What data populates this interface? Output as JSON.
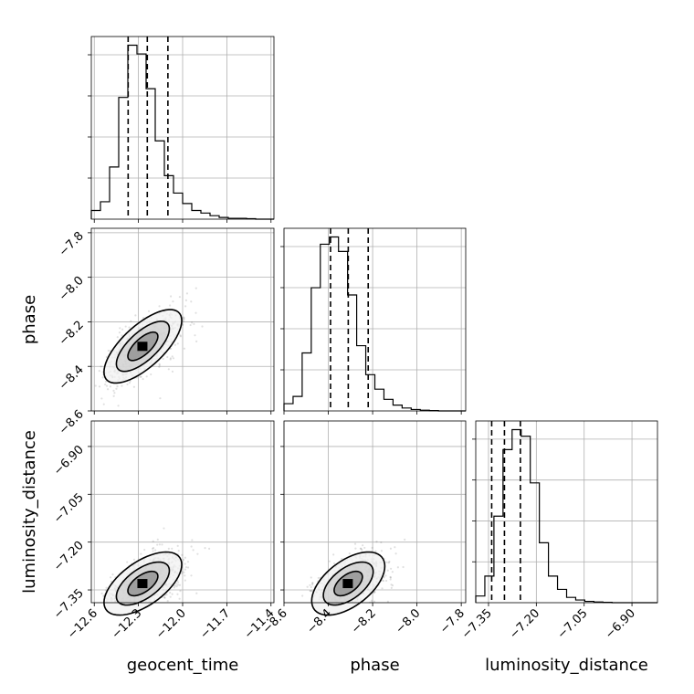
{
  "chart_data": {
    "type": "corner",
    "parameters": [
      "geocent_time",
      "phase",
      "luminosity_distance"
    ],
    "axis_labels": {
      "x": [
        "geocent_time",
        "phase",
        "luminosity_distance"
      ],
      "y": [
        "",
        "phase",
        "luminosity_distance"
      ]
    },
    "ranges": {
      "geocent_time": [
        -12.62,
        -11.38
      ],
      "phase": [
        -8.6,
        -7.78
      ],
      "luminosity_distance": [
        -7.39,
        -6.82
      ]
    },
    "ticks": {
      "geocent_time": [
        {
          "value": -12.6,
          "label": "−12.6"
        },
        {
          "value": -12.3,
          "label": "−12.3"
        },
        {
          "value": -12.0,
          "label": "−12.0"
        },
        {
          "value": -11.7,
          "label": "−11.7"
        },
        {
          "value": -11.4,
          "label": "−11.4"
        }
      ],
      "phase": [
        {
          "value": -8.6,
          "label": "−8.6"
        },
        {
          "value": -8.4,
          "label": "−8.4"
        },
        {
          "value": -8.2,
          "label": "−8.2"
        },
        {
          "value": -8.0,
          "label": "−8.0"
        },
        {
          "value": -7.8,
          "label": "−7.8"
        }
      ],
      "luminosity_distance": [
        {
          "value": -7.35,
          "label": "−7.35"
        },
        {
          "value": -7.2,
          "label": "−7.20"
        },
        {
          "value": -7.05,
          "label": "−7.05"
        },
        {
          "value": -6.9,
          "label": "−6.90"
        }
      ]
    },
    "grid": true,
    "quantiles": {
      "geocent_time": [
        -12.37,
        -12.24,
        -12.1
      ],
      "phase": [
        -8.39,
        -8.31,
        -8.22
      ],
      "luminosity_distance": [
        -7.34,
        -7.3,
        -7.25
      ]
    },
    "histograms": {
      "geocent_time": [
        1,
        2,
        6,
        14,
        20,
        19,
        15,
        9,
        5,
        3,
        1.8,
        1,
        0.7,
        0.4,
        0.2,
        0.1,
        0.1,
        0.05,
        0,
        0
      ],
      "phase": [
        1,
        2,
        8,
        17,
        23,
        24,
        22,
        16,
        9,
        5,
        3,
        1.6,
        0.8,
        0.4,
        0.2,
        0.1,
        0.05,
        0,
        0,
        0
      ],
      "luminosity_distance": [
        1,
        4,
        13,
        23,
        26,
        25,
        18,
        9,
        4,
        2,
        0.8,
        0.4,
        0.2,
        0.1,
        0.05,
        0,
        0,
        0,
        0,
        0
      ]
    },
    "hist_max": {
      "geocent_time": 20,
      "phase": 24,
      "luminosity_distance": 26
    },
    "correlations": {
      "phase|geocent_time": 0.7,
      "luminosity_distance|geocent_time": 0.6,
      "luminosity_distance|phase": 0.55
    },
    "centers": {
      "geocent_time": -12.27,
      "phase": -8.31,
      "luminosity_distance": -7.33
    },
    "sigmas": {
      "geocent_time": 0.12,
      "phase": 0.075,
      "luminosity_distance": 0.045
    }
  }
}
